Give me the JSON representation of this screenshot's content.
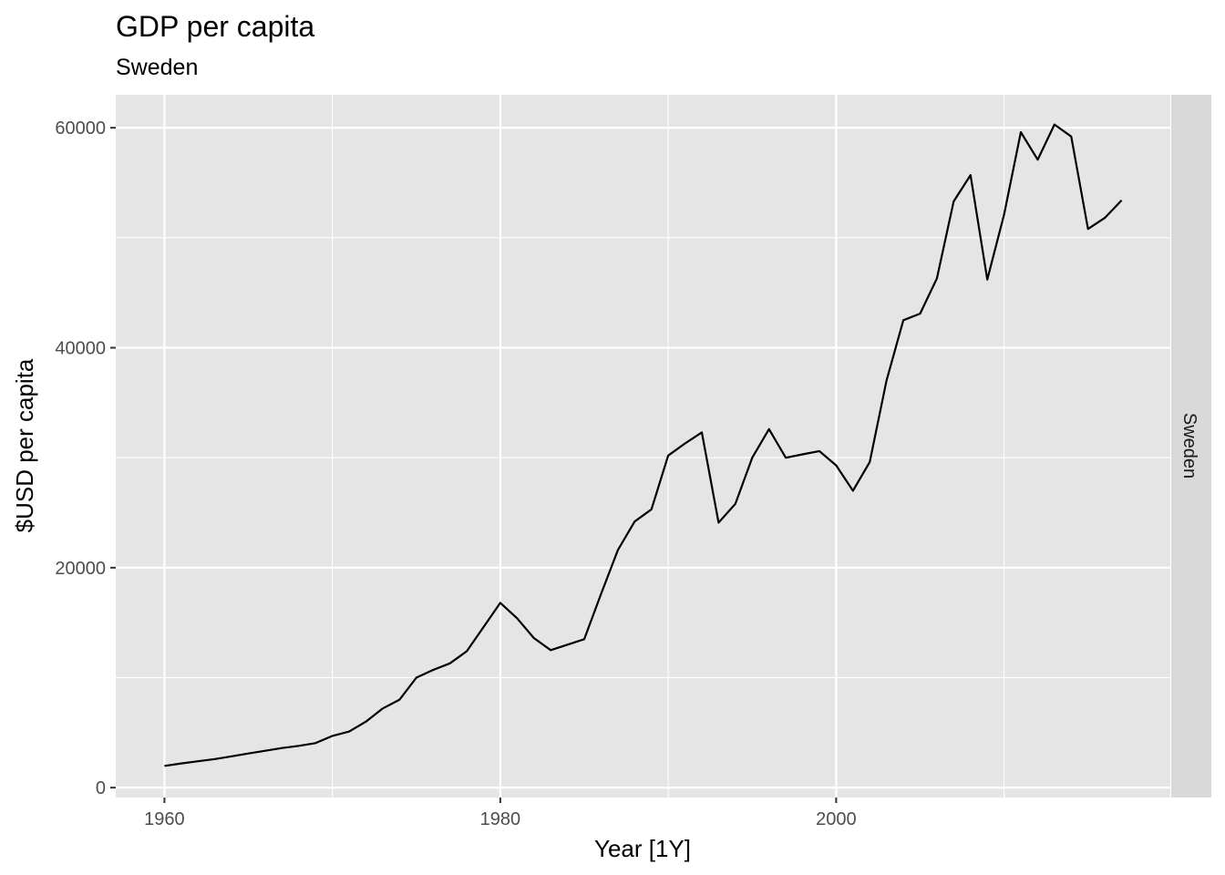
{
  "chart_data": {
    "type": "line",
    "title": "GDP per capita",
    "subtitle": "Sweden",
    "xlabel": "Year [1Y]",
    "ylabel": "$USD per capita",
    "facet_label": "Sweden",
    "xlim": [
      1957.1,
      2019.9
    ],
    "ylim": [
      -900,
      63000
    ],
    "x_ticks": [
      1960,
      1980,
      2000
    ],
    "x_tick_labels": [
      "1960",
      "1980",
      "2000"
    ],
    "x_minor": [
      1970,
      1990,
      2010
    ],
    "y_ticks": [
      0,
      20000,
      40000,
      60000
    ],
    "y_tick_labels": [
      "0",
      "20000",
      "40000",
      "60000"
    ],
    "y_minor": [
      10000,
      30000,
      50000
    ],
    "grid": true,
    "legend": "none",
    "colors": {
      "panel": "#e5e5e5",
      "grid": "#ffffff",
      "strip": "#d9d9d9",
      "line": "#000000",
      "tick": "#333333"
    },
    "series": [
      {
        "x": [
          1960,
          1961,
          1962,
          1963,
          1964,
          1965,
          1966,
          1967,
          1968,
          1969,
          1970,
          1971,
          1972,
          1973,
          1974,
          1975,
          1976,
          1977,
          1978,
          1979,
          1980,
          1981,
          1982,
          1983,
          1984,
          1985,
          1986,
          1987,
          1988,
          1989,
          1990,
          1991,
          1992,
          1993,
          1994,
          1995,
          1996,
          1997,
          1998,
          1999,
          2000,
          2001,
          2002,
          2003,
          2004,
          2005,
          2006,
          2007,
          2008,
          2009,
          2010,
          2011,
          2012,
          2013,
          2014,
          2015,
          2016,
          2017
        ],
        "values": [
          1980,
          2200,
          2400,
          2600,
          2850,
          3100,
          3350,
          3600,
          3800,
          4050,
          4700,
          5100,
          6000,
          7200,
          8000,
          10000,
          10700,
          11300,
          12400,
          14600,
          16800,
          15400,
          13600,
          12500,
          13000,
          13500,
          17600,
          21600,
          24200,
          25300,
          30200,
          31300,
          32300,
          24100,
          25800,
          30000,
          32600,
          30000,
          30300,
          30600,
          29300,
          27000,
          29600,
          37000,
          42500,
          43100,
          46300,
          53300,
          55700,
          46200,
          52100,
          59600,
          57100,
          60300,
          59200,
          50800,
          51800,
          53400
        ]
      }
    ]
  }
}
